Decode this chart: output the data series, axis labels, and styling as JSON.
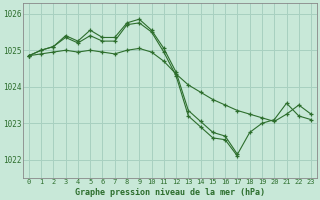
{
  "title": "Graphe pression niveau de la mer (hPa)",
  "background_color": "#c8e8d8",
  "grid_color": "#a8d0c0",
  "line_color": "#2d6e2d",
  "ylim": [
    1021.5,
    1026.3
  ],
  "yticks": [
    1022,
    1023,
    1024,
    1025,
    1026
  ],
  "series": [
    [
      1024.85,
      1025.0,
      1025.1,
      1025.4,
      1025.25,
      1025.55,
      1025.35,
      1025.35,
      1025.75,
      1025.85,
      1025.55,
      1025.05,
      1024.4,
      1023.35,
      1023.05,
      1022.75,
      1022.65,
      1022.15,
      1022.75,
      1023.0,
      1023.1,
      1023.55,
      1023.2,
      1023.1
    ],
    [
      1024.85,
      1025.0,
      1025.1,
      1025.35,
      1025.2,
      1025.4,
      1025.25,
      1025.25,
      1025.7,
      1025.75,
      1025.5,
      1024.95,
      1024.3,
      1023.2,
      1022.9,
      1022.6,
      1022.55,
      1022.1,
      null,
      null,
      null,
      null,
      null,
      null
    ],
    [
      1024.85,
      1024.9,
      1024.95,
      1025.0,
      1024.95,
      1025.0,
      1024.95,
      1024.9,
      1025.0,
      1025.05,
      1024.95,
      1024.7,
      1024.35,
      1024.05,
      1023.85,
      1023.65,
      1023.5,
      1023.35,
      1023.25,
      1023.15,
      1023.05,
      1023.25,
      1023.5,
      1023.25
    ]
  ],
  "ytick_labels": [
    "1022",
    "1023",
    "1024",
    "1025",
    "1026"
  ],
  "x_labels": [
    "0",
    "1",
    "2",
    "3",
    "4",
    "5",
    "6",
    "7",
    "8",
    "9",
    "10",
    "11",
    "12",
    "13",
    "14",
    "15",
    "16",
    "17",
    "18",
    "19",
    "20",
    "21",
    "22",
    "23"
  ]
}
